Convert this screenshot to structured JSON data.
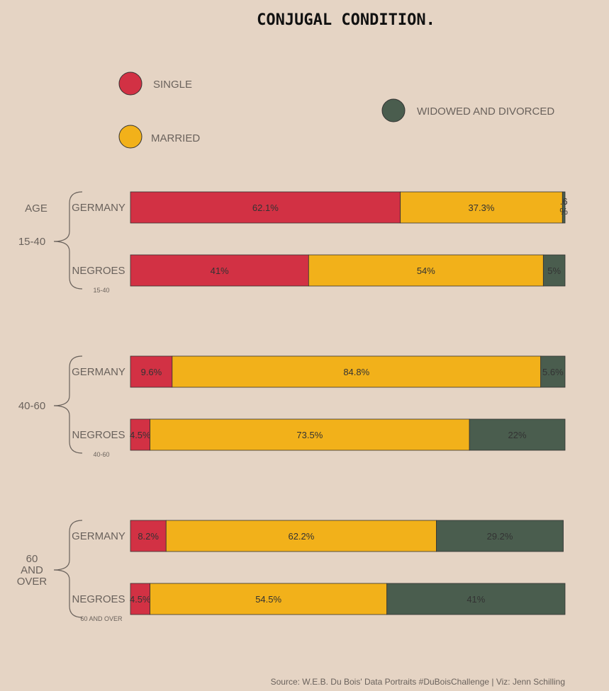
{
  "chart_data": {
    "type": "bar",
    "title": "CONJUGAL CONDITION.",
    "age_heading": "AGE",
    "colors": {
      "single": "#d23144",
      "married": "#f2b11a",
      "widowed": "#4a5d4e",
      "background": "#e5d4c4"
    },
    "legend": [
      {
        "key": "single",
        "label": "SINGLE"
      },
      {
        "key": "married",
        "label": "MARRIED"
      },
      {
        "key": "widowed",
        "label": "WIDOWED AND DIVORCED"
      }
    ],
    "groups": [
      {
        "label": "15-40",
        "small_label": "15-40",
        "rows": [
          {
            "name": "GERMANY",
            "values": [
              62.1,
              37.3,
              0.6
            ],
            "labels": [
              "62.1%",
              "37.3%",
              ".6 %"
            ]
          },
          {
            "name": "NEGROES",
            "values": [
              41,
              54,
              5
            ],
            "labels": [
              "41%",
              "54%",
              "5%"
            ]
          }
        ]
      },
      {
        "label": "40-60",
        "small_label": "40-60",
        "rows": [
          {
            "name": "GERMANY",
            "values": [
              9.6,
              84.8,
              5.6
            ],
            "labels": [
              "9.6%",
              "84.8%",
              "5.6%"
            ]
          },
          {
            "name": "NEGROES",
            "values": [
              4.5,
              73.5,
              22
            ],
            "labels": [
              "4.5%",
              "73.5%",
              "22%"
            ]
          }
        ]
      },
      {
        "label": "60 AND OVER",
        "small_label": "60 AND OVER",
        "rows": [
          {
            "name": "GERMANY",
            "values": [
              8.2,
              62.2,
              29.2
            ],
            "labels": [
              "8.2%",
              "62.2%",
              "29.2%"
            ]
          },
          {
            "name": "NEGROES",
            "values": [
              4.5,
              54.5,
              41
            ],
            "labels": [
              "4.5%",
              "54.5%",
              "41%"
            ]
          }
        ]
      }
    ],
    "xlim": [
      0,
      100
    ]
  },
  "source": "Source: W.E.B. Du Bois' Data Portraits #DuBoisChallenge | Viz: Jenn Schilling"
}
